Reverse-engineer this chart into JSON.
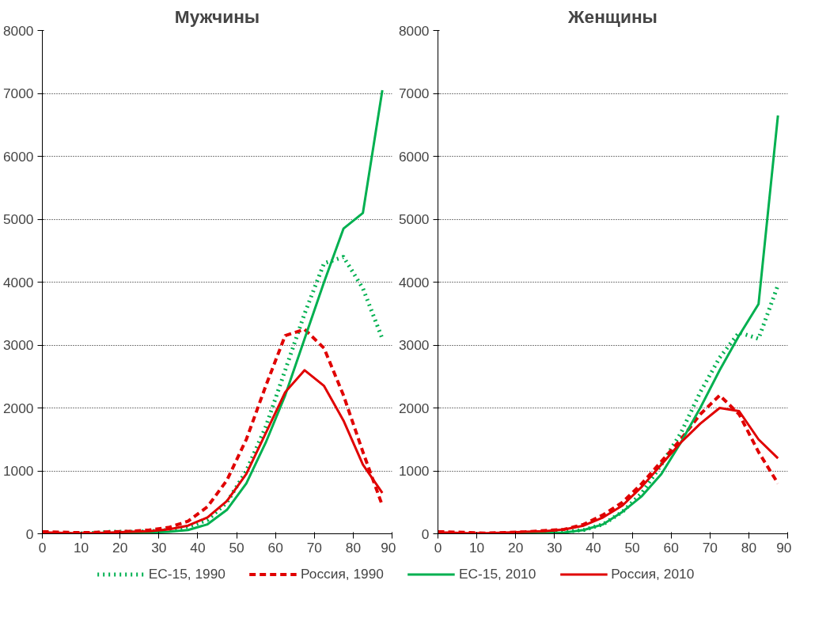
{
  "chart_data": [
    {
      "type": "line",
      "title": "Мужчины",
      "x": [
        0,
        2.5,
        7.5,
        12.5,
        17.5,
        22.5,
        27.5,
        32.5,
        37.5,
        42.5,
        47.5,
        52.5,
        57.5,
        62.5,
        67.5,
        72.5,
        77.5,
        82.5,
        87.5
      ],
      "xlim": [
        0,
        90
      ],
      "xticks": [
        0,
        10,
        20,
        30,
        40,
        50,
        60,
        70,
        80,
        90
      ],
      "ylim": [
        0,
        8000
      ],
      "yticks": [
        0,
        1000,
        2000,
        3000,
        4000,
        5000,
        6000,
        7000,
        8000
      ],
      "grid": "y",
      "legend": "bottom",
      "series": [
        {
          "name": "ЕС-15, 1990",
          "color": "#00b050",
          "line_style": "dotted",
          "values": [
            10,
            0,
            0,
            10,
            30,
            30,
            40,
            60,
            110,
            220,
            500,
            1000,
            1700,
            2600,
            3500,
            4300,
            4400,
            3900,
            3100
          ]
        },
        {
          "name": "Россия, 1990",
          "color": "#e00000",
          "line_style": "dashed",
          "values": [
            30,
            30,
            20,
            20,
            30,
            40,
            60,
            100,
            200,
            430,
            850,
            1500,
            2350,
            3150,
            3250,
            2950,
            2200,
            1300,
            450
          ]
        },
        {
          "name": "ЕС-15, 2010",
          "color": "#00b050",
          "line_style": "solid",
          "values": [
            0,
            0,
            0,
            0,
            10,
            10,
            20,
            30,
            60,
            150,
            380,
            800,
            1450,
            2200,
            3100,
            4000,
            4850,
            5100,
            7050
          ]
        },
        {
          "name": "Россия, 2010",
          "color": "#e00000",
          "line_style": "solid",
          "values": [
            20,
            20,
            10,
            10,
            20,
            30,
            40,
            70,
            130,
            260,
            520,
            950,
            1600,
            2250,
            2600,
            2350,
            1800,
            1100,
            650
          ]
        }
      ]
    },
    {
      "type": "line",
      "title": "Женщины",
      "x": [
        0,
        2.5,
        7.5,
        12.5,
        17.5,
        22.5,
        27.5,
        32.5,
        37.5,
        42.5,
        47.5,
        52.5,
        57.5,
        62.5,
        67.5,
        72.5,
        77.5,
        82.5,
        87.5
      ],
      "xlim": [
        0,
        90
      ],
      "xticks": [
        0,
        10,
        20,
        30,
        40,
        50,
        60,
        70,
        80,
        90
      ],
      "ylim": [
        0,
        8000
      ],
      "yticks": [
        0,
        1000,
        2000,
        3000,
        4000,
        5000,
        6000,
        7000,
        8000
      ],
      "grid": "y",
      "series": [
        {
          "color": "#00b050",
          "line_style": "dotted",
          "values": [
            null,
            null,
            null,
            null,
            0,
            0,
            10,
            30,
            60,
            150,
            350,
            650,
            1100,
            1600,
            2250,
            2800,
            3200,
            3100,
            3950
          ]
        },
        {
          "color": "#e00000",
          "line_style": "dashed",
          "values": [
            30,
            30,
            20,
            10,
            20,
            30,
            50,
            70,
            150,
            300,
            500,
            800,
            1150,
            1500,
            1900,
            2200,
            1900,
            1300,
            800
          ]
        },
        {
          "color": "#00b050",
          "line_style": "solid",
          "values": [
            null,
            null,
            null,
            null,
            0,
            0,
            10,
            20,
            60,
            150,
            350,
            600,
            950,
            1450,
            2000,
            2600,
            3150,
            3650,
            6650
          ]
        },
        {
          "color": "#e00000",
          "line_style": "solid",
          "values": [
            20,
            20,
            10,
            10,
            20,
            30,
            40,
            70,
            130,
            260,
            450,
            750,
            1100,
            1450,
            1750,
            2000,
            1950,
            1500,
            1200
          ]
        }
      ]
    }
  ]
}
